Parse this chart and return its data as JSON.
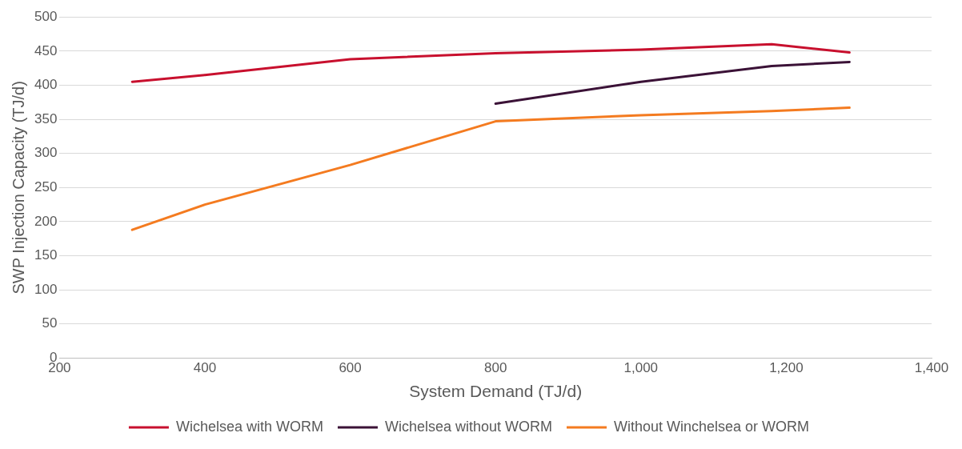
{
  "chart_data": {
    "type": "line",
    "xlabel": "System Demand (TJ/d)",
    "ylabel": "SWP Injection Capacity (TJ/d)",
    "xlim": [
      200,
      1400
    ],
    "xticks": [
      {
        "value": 200,
        "label": "200"
      },
      {
        "value": 400,
        "label": "400"
      },
      {
        "value": 600,
        "label": "600"
      },
      {
        "value": 800,
        "label": "800"
      },
      {
        "value": 1000,
        "label": "1,000"
      },
      {
        "value": 1200,
        "label": "1,200"
      },
      {
        "value": 1400,
        "label": "1,400"
      }
    ],
    "ylim": [
      0,
      500
    ],
    "yticks": [
      0,
      50,
      100,
      150,
      200,
      250,
      300,
      350,
      400,
      450,
      500
    ],
    "grid": "y",
    "legend": "bottom",
    "marker": "none",
    "line_style": "solid",
    "series": [
      {
        "name": "Wichelsea with WORM",
        "color": "#c8102e",
        "x": [
          300,
          400,
          600,
          800,
          1000,
          1180,
          1287
        ],
        "values": [
          405,
          415,
          438,
          447,
          452,
          460,
          448
        ]
      },
      {
        "name": "Wichelsea without WORM",
        "color": "#3b1237",
        "x": [
          800,
          1000,
          1180,
          1287
        ],
        "values": [
          373,
          405,
          428,
          434
        ]
      },
      {
        "name": "Without Winchelsea or WORM",
        "color": "#f47b20",
        "x": [
          300,
          400,
          600,
          800,
          1000,
          1180,
          1287
        ],
        "values": [
          188,
          225,
          283,
          347,
          356,
          362,
          367
        ]
      }
    ]
  }
}
